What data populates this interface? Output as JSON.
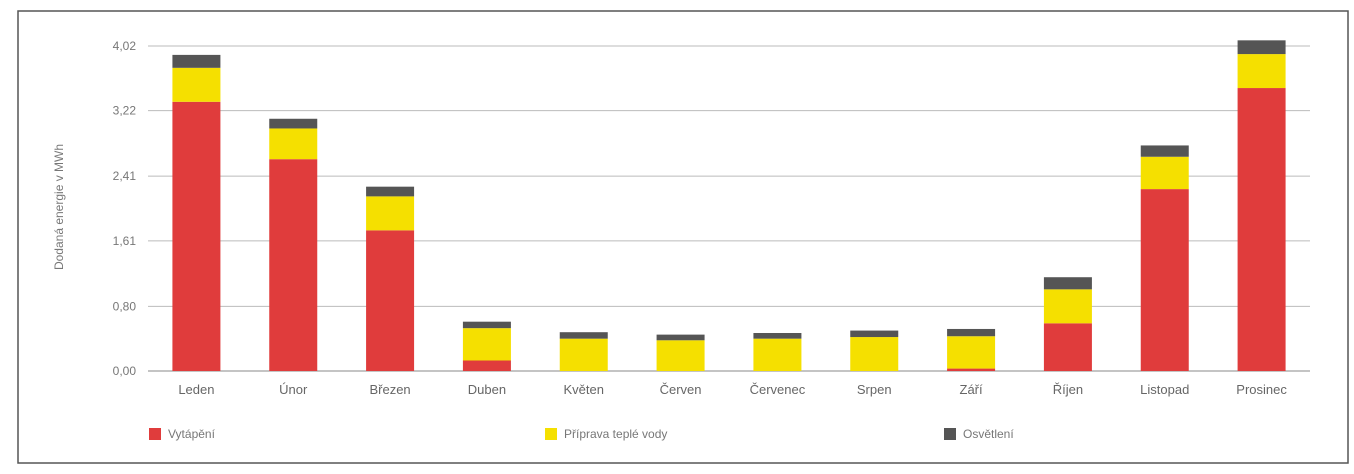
{
  "chart_data": {
    "type": "bar",
    "stacked": true,
    "title": "",
    "xlabel": "",
    "ylabel": "Dodaná energie v MWh",
    "ylim": [
      0,
      4.02
    ],
    "yticks": [
      "0,00",
      "0,80",
      "1,61",
      "2,41",
      "3,22",
      "4,02"
    ],
    "ytick_values": [
      0,
      0.8,
      1.61,
      2.41,
      3.22,
      4.02
    ],
    "grid": true,
    "legend_position": "bottom",
    "categories": [
      "Leden",
      "Únor",
      "Březen",
      "Duben",
      "Květen",
      "Červen",
      "Červenec",
      "Srpen",
      "Září",
      "Říjen",
      "Listopad",
      "Prosinec"
    ],
    "series": [
      {
        "name": "Vytápění",
        "color": "#e03c3c",
        "values": [
          3.33,
          2.62,
          1.74,
          0.13,
          0.0,
          0.0,
          0.0,
          0.0,
          0.03,
          0.59,
          2.25,
          3.5
        ]
      },
      {
        "name": "Příprava teplé vody",
        "color": "#f5e000",
        "values": [
          0.42,
          0.38,
          0.42,
          0.4,
          0.4,
          0.38,
          0.4,
          0.42,
          0.4,
          0.42,
          0.4,
          0.42
        ]
      },
      {
        "name": "Osvětlení",
        "color": "#555555",
        "values": [
          0.16,
          0.12,
          0.12,
          0.08,
          0.08,
          0.07,
          0.07,
          0.08,
          0.09,
          0.15,
          0.14,
          0.17
        ]
      }
    ]
  }
}
